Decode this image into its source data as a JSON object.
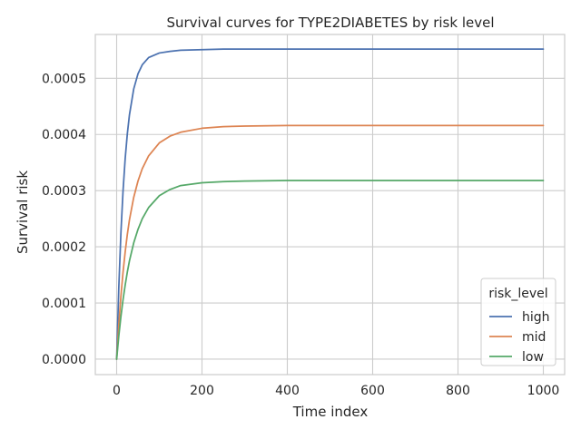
{
  "chart_data": {
    "type": "line",
    "title": "Survival curves for TYPE2DIABETES by risk level",
    "xlabel": "Time index",
    "ylabel": "Survival risk",
    "xlim": [
      -50,
      1050
    ],
    "ylim": [
      -2.75e-05,
      0.000578
    ],
    "xticks": [
      0,
      200,
      400,
      600,
      800,
      1000
    ],
    "xtick_labels": [
      "0",
      "200",
      "400",
      "600",
      "800",
      "1000"
    ],
    "yticks": [
      0,
      0.0001,
      0.0002,
      0.0003,
      0.0004,
      0.0005
    ],
    "ytick_labels": [
      "0.0000",
      "0.0001",
      "0.0002",
      "0.0003",
      "0.0004",
      "0.0005"
    ],
    "grid": true,
    "legend": {
      "title": "risk_level",
      "placement": "lower-right"
    },
    "series": [
      {
        "name": "high",
        "color": "#4c72b0",
        "x": [
          0,
          5,
          10,
          15,
          20,
          25,
          30,
          40,
          50,
          60,
          75,
          100,
          125,
          150,
          200,
          250,
          300,
          400,
          500,
          600,
          700,
          800,
          900,
          1000
        ],
        "y": [
          0,
          0.000127,
          0.000225,
          0.0003,
          0.000357,
          0.000401,
          0.000435,
          0.000481,
          0.000508,
          0.000524,
          0.000537,
          0.000545,
          0.000548,
          0.00055,
          0.000551,
          0.000552,
          0.000552,
          0.000552,
          0.000552,
          0.000552,
          0.000552,
          0.000552,
          0.000552,
          0.000552
        ]
      },
      {
        "name": "mid",
        "color": "#dd8452",
        "x": [
          0,
          5,
          10,
          15,
          20,
          25,
          30,
          40,
          50,
          60,
          75,
          100,
          125,
          150,
          200,
          250,
          300,
          400,
          500,
          600,
          700,
          800,
          900,
          1000
        ],
        "y": [
          0,
          6.1e-05,
          0.000112,
          0.000155,
          0.000191,
          0.000222,
          0.000248,
          0.000288,
          0.000317,
          0.000339,
          0.000362,
          0.000385,
          0.000397,
          0.000404,
          0.000411,
          0.000414,
          0.000415,
          0.000416,
          0.000416,
          0.000416,
          0.000416,
          0.000416,
          0.000416,
          0.000416
        ]
      },
      {
        "name": "low",
        "color": "#55a868",
        "x": [
          0,
          5,
          10,
          15,
          20,
          25,
          30,
          40,
          50,
          60,
          75,
          100,
          125,
          150,
          200,
          250,
          300,
          400,
          500,
          600,
          700,
          800,
          900,
          1000
        ],
        "y": [
          0,
          4.1e-05,
          7.6e-05,
          0.000106,
          0.000132,
          0.000155,
          0.000175,
          0.000207,
          0.000231,
          0.00025,
          0.00027,
          0.000291,
          0.000302,
          0.000309,
          0.000314,
          0.000316,
          0.000317,
          0.000318,
          0.000318,
          0.000318,
          0.000318,
          0.000318,
          0.000318,
          0.000318
        ]
      }
    ]
  }
}
